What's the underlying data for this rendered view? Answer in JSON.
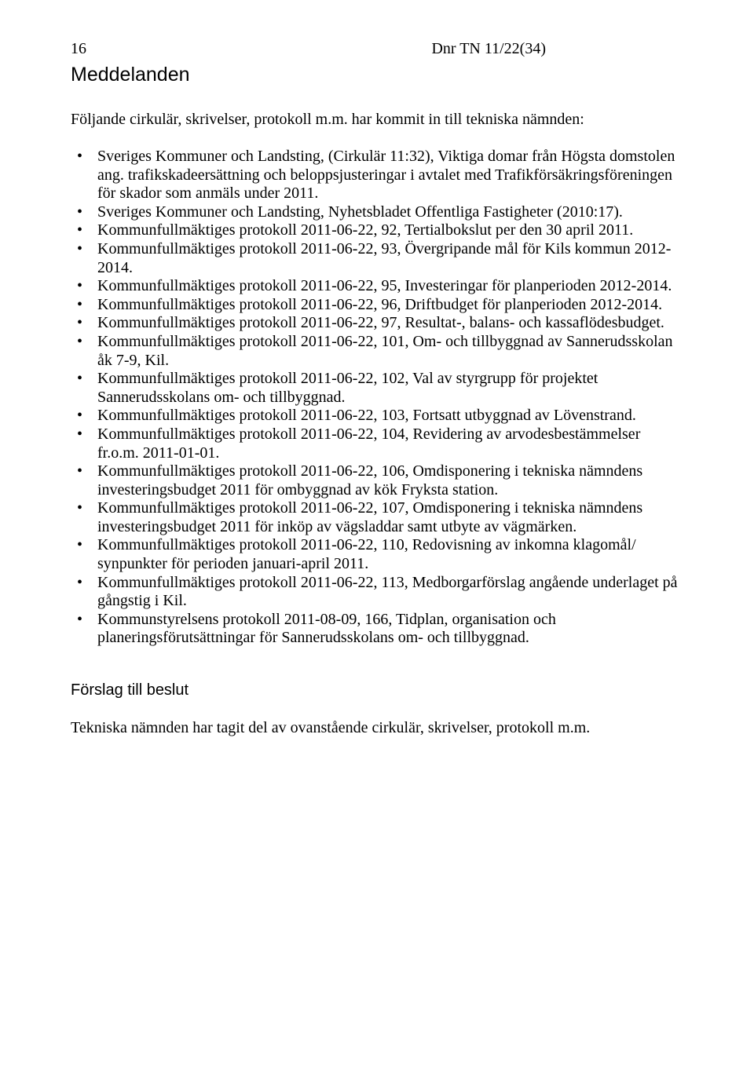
{
  "header": {
    "page_number": "16",
    "dnr": "Dnr TN 11/22(34)"
  },
  "main_title": "Meddelanden",
  "intro": "Följande cirkulär, skrivelser, protokoll m.m. har kommit in till tekniska nämnden:",
  "bullets": [
    "Sveriges Kommuner och Landsting, (Cirkulär 11:32), Viktiga domar från Högsta domstolen ang. trafikskadeersättning och beloppsjusteringar i avtalet med Trafikförsäkringsföreningen för skador som anmäls under 2011.",
    "Sveriges Kommuner och Landsting, Nyhetsbladet Offentliga Fastigheter (2010:17).",
    "Kommunfullmäktiges protokoll 2011-06-22, 92, Tertialbokslut per den 30 april 2011.",
    "Kommunfullmäktiges protokoll 2011-06-22, 93, Övergripande mål för Kils kommun 2012-2014.",
    "Kommunfullmäktiges protokoll 2011-06-22, 95, Investeringar för planperioden 2012-2014.",
    "Kommunfullmäktiges protokoll 2011-06-22, 96, Driftbudget för planperioden 2012-2014.",
    "Kommunfullmäktiges protokoll 2011-06-22, 97, Resultat-, balans- och kassaflödesbudget.",
    "Kommunfullmäktiges protokoll 2011-06-22, 101, Om- och tillbyggnad av Sannerudsskolan\nåk 7-9, Kil.",
    "Kommunfullmäktiges protokoll 2011-06-22, 102, Val av styrgrupp för projektet Sannerudsskolans om- och tillbyggnad.",
    "Kommunfullmäktiges protokoll 2011-06-22, 103, Fortsatt utbyggnad av Lövenstrand.",
    "Kommunfullmäktiges protokoll 2011-06-22, 104, Revidering av arvodesbestämmelser fr.o.m. 2011-01-01.",
    "Kommunfullmäktiges protokoll 2011-06-22, 106, Omdisponering i tekniska nämndens investeringsbudget 2011 för ombyggnad av kök Fryksta station.",
    "Kommunfullmäktiges protokoll 2011-06-22, 107, Omdisponering i tekniska nämndens investeringsbudget 2011 för inköp av vägsladdar samt utbyte av vägmärken.",
    "Kommunfullmäktiges protokoll 2011-06-22, 110, Redovisning av inkomna klagomål/ synpunkter för perioden januari-april 2011.",
    "Kommunfullmäktiges protokoll 2011-06-22, 113, Medborgarförslag angående underlaget på gångstig i Kil.",
    "Kommunstyrelsens protokoll 2011-08-09, 166, Tidplan, organisation och planeringsförutsättningar för Sannerudsskolans om- och tillbyggnad."
  ],
  "subtitle": "Förslag till beslut",
  "closing": "Tekniska nämnden har tagit del av ovanstående cirkulär, skrivelser, protokoll m.m."
}
